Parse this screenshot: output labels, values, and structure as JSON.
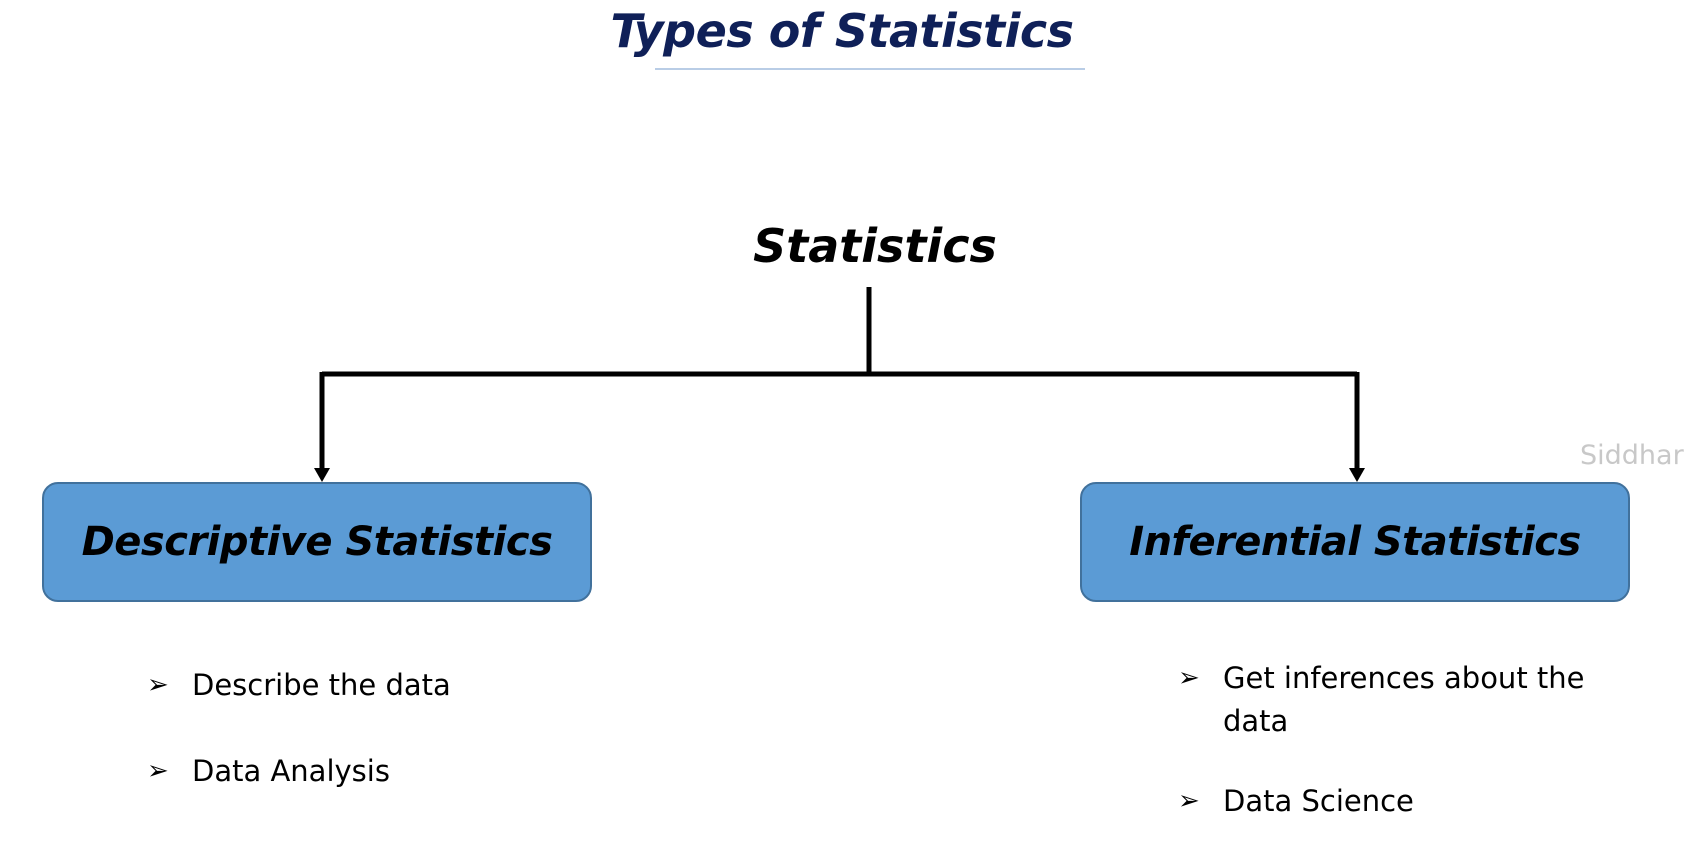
{
  "title": "Types of Statistics",
  "diagram": {
    "root": "Statistics",
    "branches": [
      {
        "label": "Descriptive Statistics",
        "bullets": [
          "Describe the data",
          "Data Analysis"
        ]
      },
      {
        "label": "Inferential Statistics",
        "bullets": [
          "Get inferences about the data",
          "Data Science"
        ]
      }
    ]
  },
  "watermark": "Siddhar",
  "colors": {
    "title": "#0f2058",
    "box_fill": "#5b9bd5",
    "box_border": "#41719c",
    "connector": "#000000",
    "watermark": "#c8c8c8"
  },
  "icons": {
    "bullet": "arrowhead-bullet-icon"
  }
}
